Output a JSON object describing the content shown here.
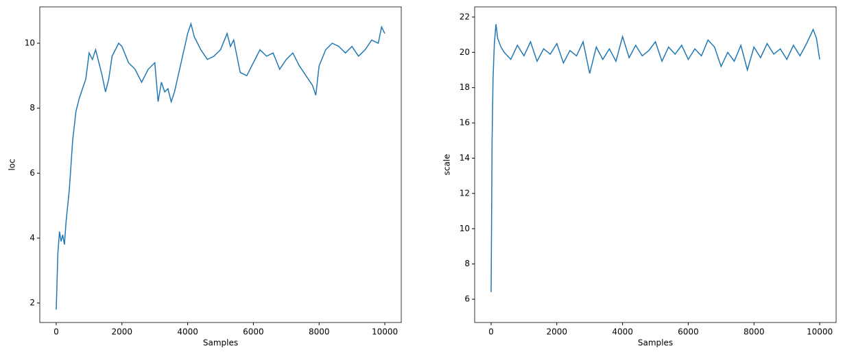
{
  "chart_data": [
    {
      "type": "line",
      "xlabel": "Samples",
      "ylabel": "loc",
      "xlim": [
        -500,
        10500
      ],
      "ylim": [
        1.4,
        11.12
      ],
      "xticks": [
        0,
        2000,
        4000,
        6000,
        8000,
        10000
      ],
      "yticks": [
        2,
        4,
        6,
        8,
        10
      ],
      "series": [
        {
          "color": "#1f77b4",
          "x": [
            0,
            50,
            100,
            150,
            200,
            250,
            300,
            400,
            500,
            600,
            700,
            800,
            900,
            1000,
            1100,
            1200,
            1300,
            1400,
            1500,
            1600,
            1700,
            1800,
            1900,
            2000,
            2200,
            2400,
            2600,
            2800,
            3000,
            3100,
            3200,
            3300,
            3400,
            3500,
            3600,
            3800,
            4000,
            4100,
            4200,
            4400,
            4600,
            4800,
            5000,
            5200,
            5300,
            5400,
            5600,
            5800,
            6000,
            6200,
            6400,
            6600,
            6800,
            7000,
            7200,
            7400,
            7600,
            7800,
            7900,
            8000,
            8200,
            8400,
            8600,
            8800,
            9000,
            9200,
            9400,
            9600,
            9800,
            9900,
            10000
          ],
          "values": [
            1.8,
            3.5,
            4.2,
            3.9,
            4.1,
            3.8,
            4.5,
            5.5,
            7.0,
            7.9,
            8.3,
            8.6,
            8.9,
            9.7,
            9.5,
            9.8,
            9.4,
            9.0,
            8.5,
            8.9,
            9.6,
            9.8,
            10.0,
            9.9,
            9.4,
            9.2,
            8.8,
            9.2,
            9.4,
            8.2,
            8.8,
            8.5,
            8.6,
            8.2,
            8.5,
            9.4,
            10.3,
            10.6,
            10.2,
            9.8,
            9.5,
            9.6,
            9.8,
            10.3,
            9.9,
            10.1,
            9.1,
            9.0,
            9.4,
            9.8,
            9.6,
            9.7,
            9.2,
            9.5,
            9.7,
            9.3,
            9.0,
            8.7,
            8.4,
            9.3,
            9.8,
            10.0,
            9.9,
            9.7,
            9.9,
            9.6,
            9.8,
            10.1,
            10.0,
            10.5,
            10.3
          ]
        }
      ]
    },
    {
      "type": "line",
      "xlabel": "Samples",
      "ylabel": "scale",
      "xlim": [
        -500,
        10500
      ],
      "ylim": [
        4.68,
        22.58
      ],
      "xticks": [
        0,
        2000,
        4000,
        6000,
        8000,
        10000
      ],
      "yticks": [
        6,
        8,
        10,
        12,
        14,
        16,
        18,
        20,
        22
      ],
      "series": [
        {
          "color": "#1f77b4",
          "x": [
            0,
            30,
            60,
            100,
            150,
            200,
            300,
            400,
            600,
            800,
            1000,
            1200,
            1400,
            1600,
            1800,
            2000,
            2200,
            2400,
            2600,
            2800,
            3000,
            3200,
            3400,
            3600,
            3800,
            4000,
            4200,
            4400,
            4600,
            4800,
            5000,
            5200,
            5400,
            5600,
            5800,
            6000,
            6200,
            6400,
            6600,
            6800,
            7000,
            7200,
            7400,
            7600,
            7800,
            8000,
            8200,
            8400,
            8600,
            8800,
            9000,
            9200,
            9400,
            9600,
            9800,
            9900,
            10000
          ],
          "values": [
            6.4,
            15.0,
            18.5,
            20.5,
            21.6,
            20.8,
            20.3,
            20.0,
            19.6,
            20.4,
            19.8,
            20.6,
            19.5,
            20.2,
            19.9,
            20.5,
            19.4,
            20.1,
            19.8,
            20.6,
            18.8,
            20.3,
            19.6,
            20.2,
            19.5,
            20.9,
            19.7,
            20.4,
            19.8,
            20.1,
            20.6,
            19.5,
            20.3,
            19.9,
            20.4,
            19.6,
            20.2,
            19.8,
            20.7,
            20.3,
            19.2,
            20.0,
            19.5,
            20.4,
            19.0,
            20.3,
            19.7,
            20.5,
            19.9,
            20.2,
            19.6,
            20.4,
            19.8,
            20.5,
            21.3,
            20.8,
            19.6
          ]
        }
      ]
    }
  ]
}
